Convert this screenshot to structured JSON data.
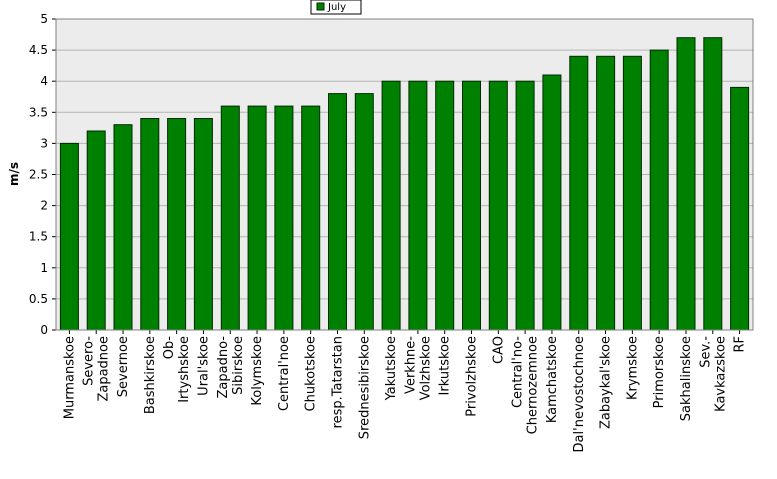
{
  "chart_data": {
    "type": "bar",
    "ylabel": "m/s",
    "ylim": [
      0,
      5
    ],
    "yticks": [
      "0",
      "0.5",
      "1",
      "1.5",
      "2",
      "2.5",
      "3",
      "3.5",
      "4",
      "4.5",
      "5"
    ],
    "grid": true,
    "legend_position": "top-center",
    "categories": [
      "Murmanskoe",
      "Severo-",
      "Zapadnoe",
      "Severnoe",
      "Bashkirskoe",
      "Ob-",
      "Irtyshskoe",
      "Ural'skoe",
      "Zapadno-",
      "Sibirskoe",
      "Kolymskoe",
      "Central'noe",
      "Chukotskoe",
      "resp.Tatarstan",
      "Srednesibirskoe",
      "Yakutskoe",
      "Verkhne-",
      "Volzhskoe",
      "Irkutskoe",
      "Privolzhskoe",
      "CAO",
      "Central'no-",
      "Chernozemnoe",
      "Kamchatskoe",
      "Dal'nevostochnoe",
      "Zabaykal'skoe",
      "Krymskoe",
      "Primorskoe",
      "Sakhalinskoe",
      "Sev.-",
      "Kavkazskoe",
      "RF"
    ],
    "bars": [
      {
        "labels": [
          "Murmanskoe"
        ],
        "value": 3.0
      },
      {
        "labels": [
          "Severo-",
          "Zapadnoe"
        ],
        "value": 3.2
      },
      {
        "labels": [
          "Severnoe"
        ],
        "value": 3.3
      },
      {
        "labels": [
          "Bashkirskoe"
        ],
        "value": 3.4
      },
      {
        "labels": [
          "Ob-",
          "Irtyshskoe"
        ],
        "value": 3.4
      },
      {
        "labels": [
          "Ural'skoe"
        ],
        "value": 3.4
      },
      {
        "labels": [
          "Zapadno-",
          "Sibirskoe"
        ],
        "value": 3.6
      },
      {
        "labels": [
          "Kolymskoe"
        ],
        "value": 3.6
      },
      {
        "labels": [
          "Central'noe"
        ],
        "value": 3.6
      },
      {
        "labels": [
          "Chukotskoe"
        ],
        "value": 3.6
      },
      {
        "labels": [
          "resp.Tatarstan"
        ],
        "value": 3.8
      },
      {
        "labels": [
          "Srednesibirskoe"
        ],
        "value": 3.8
      },
      {
        "labels": [
          "Yakutskoe"
        ],
        "value": 4.0
      },
      {
        "labels": [
          "Verkhne-",
          "Volzhskoe"
        ],
        "value": 4.0
      },
      {
        "labels": [
          "Irkutskoe"
        ],
        "value": 4.0
      },
      {
        "labels": [
          "Privolzhskoe"
        ],
        "value": 4.0
      },
      {
        "labels": [
          "CAO"
        ],
        "value": 4.0
      },
      {
        "labels": [
          "Central'no-",
          "Chernozemnoe"
        ],
        "value": 4.0
      },
      {
        "labels": [
          "Kamchatskoe"
        ],
        "value": 4.1
      },
      {
        "labels": [
          "Dal'nevostochnoe"
        ],
        "value": 4.4
      },
      {
        "labels": [
          "Zabaykal'skoe"
        ],
        "value": 4.4
      },
      {
        "labels": [
          "Krymskoe"
        ],
        "value": 4.4
      },
      {
        "labels": [
          "Primorskoe"
        ],
        "value": 4.5
      },
      {
        "labels": [
          "Sakhalinskoe"
        ],
        "value": 4.7
      },
      {
        "labels": [
          "Sev.-",
          "Kavkazskoe"
        ],
        "value": 4.7
      },
      {
        "labels": [
          "RF"
        ],
        "value": 3.9
      }
    ],
    "series": [
      {
        "name": "July",
        "color": "#008000"
      }
    ],
    "colors": {
      "bar_fill": "#008000",
      "bar_stroke": "#002a00",
      "plot_bg": "#ececec",
      "grid": "#b4b4b4"
    }
  }
}
